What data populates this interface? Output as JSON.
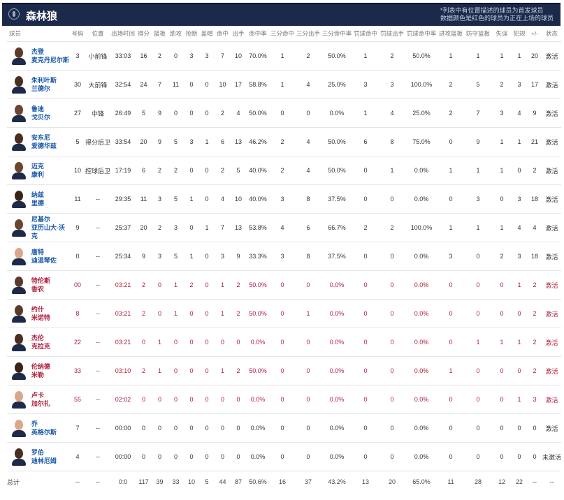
{
  "header": {
    "team": "森林狼",
    "note_line1": "*列表中有位置描述的球员为首发球员",
    "note_line2": "数据颜色是红色的球员为正在上场的球员"
  },
  "columns": [
    "球员",
    "号码",
    "位置",
    "出场时间",
    "得分",
    "篮板",
    "助攻",
    "抢断",
    "盖帽",
    "命中",
    "出手",
    "命中率",
    "三分命中",
    "三分出手",
    "三分命中率",
    "罚球命中",
    "罚球出手",
    "罚球命中率",
    "进攻篮板",
    "防守篮板",
    "失误",
    "犯规",
    "+/-",
    "状态"
  ],
  "colors": {
    "header_bg": "#1b2a4a",
    "name_blue": "#1a5aa8",
    "on_court_red": "#b0203c"
  },
  "players": [
    {
      "first": "杰登",
      "last": "麦克丹尼尔斯",
      "on_court": false,
      "skin": "#5a3a28",
      "stats": [
        "3",
        "小前锋",
        "33:03",
        "16",
        "2",
        "0",
        "3",
        "3",
        "7",
        "10",
        "70.0%",
        "1",
        "2",
        "50.0%",
        "1",
        "2",
        "50.0%",
        "1",
        "1",
        "1",
        "1",
        "20",
        "激活"
      ]
    },
    {
      "first": "朱利叶斯",
      "last": "兰德尔",
      "on_court": false,
      "skin": "#4a2e20",
      "stats": [
        "30",
        "大前锋",
        "32:54",
        "24",
        "7",
        "11",
        "0",
        "0",
        "10",
        "17",
        "58.8%",
        "1",
        "4",
        "25.0%",
        "3",
        "3",
        "100.0%",
        "2",
        "5",
        "2",
        "3",
        "17",
        "激活"
      ]
    },
    {
      "first": "鲁迪",
      "last": "戈贝尔",
      "on_court": false,
      "skin": "#6a4630",
      "stats": [
        "27",
        "中锋",
        "26:49",
        "5",
        "9",
        "0",
        "0",
        "0",
        "2",
        "4",
        "50.0%",
        "0",
        "0",
        "0.0%",
        "1",
        "4",
        "25.0%",
        "2",
        "7",
        "3",
        "4",
        "9",
        "激活"
      ]
    },
    {
      "first": "安东尼",
      "last": "爱德华兹",
      "on_court": false,
      "skin": "#4a2e20",
      "stats": [
        "5",
        "得分后卫",
        "33:54",
        "20",
        "9",
        "5",
        "3",
        "1",
        "6",
        "13",
        "46.2%",
        "2",
        "4",
        "50.0%",
        "6",
        "8",
        "75.0%",
        "0",
        "9",
        "1",
        "1",
        "21",
        "激活"
      ]
    },
    {
      "first": "迈克",
      "last": "康利",
      "on_court": false,
      "skin": "#6a4630",
      "stats": [
        "10",
        "控球后卫",
        "17:19",
        "6",
        "2",
        "2",
        "0",
        "0",
        "2",
        "5",
        "40.0%",
        "2",
        "4",
        "50.0%",
        "0",
        "1",
        "0.0%",
        "1",
        "1",
        "1",
        "0",
        "2",
        "激活"
      ]
    },
    {
      "first": "纳兹",
      "last": "里德",
      "on_court": false,
      "skin": "#3a2418",
      "stats": [
        "11",
        "--",
        "29:35",
        "11",
        "3",
        "5",
        "1",
        "0",
        "4",
        "10",
        "40.0%",
        "3",
        "8",
        "37.5%",
        "0",
        "0",
        "0.0%",
        "0",
        "3",
        "0",
        "3",
        "18",
        "激活"
      ]
    },
    {
      "first": "尼基尔",
      "last": "亚历山大-沃克",
      "on_court": false,
      "skin": "#6a4630",
      "stats": [
        "9",
        "--",
        "25:37",
        "20",
        "2",
        "3",
        "0",
        "1",
        "7",
        "13",
        "53.8%",
        "4",
        "6",
        "66.7%",
        "2",
        "2",
        "100.0%",
        "1",
        "1",
        "1",
        "4",
        "4",
        "激活"
      ]
    },
    {
      "first": "唐特",
      "last": "迪温琴佐",
      "on_court": false,
      "skin": "#d9a88a",
      "stats": [
        "0",
        "--",
        "25:34",
        "9",
        "3",
        "5",
        "1",
        "0",
        "3",
        "9",
        "33.3%",
        "3",
        "8",
        "37.5%",
        "0",
        "0",
        "0.0%",
        "3",
        "0",
        "2",
        "3",
        "18",
        "激活"
      ]
    },
    {
      "first": "特伦斯",
      "last": "香农",
      "on_court": true,
      "skin": "#5a3a28",
      "stats": [
        "00",
        "--",
        "03:21",
        "2",
        "0",
        "1",
        "2",
        "0",
        "1",
        "2",
        "50.0%",
        "0",
        "0",
        "0.0%",
        "0",
        "0",
        "0.0%",
        "0",
        "0",
        "0",
        "1",
        "2",
        "激活"
      ]
    },
    {
      "first": "约什",
      "last": "米诺特",
      "on_court": true,
      "skin": "#5a3a28",
      "stats": [
        "8",
        "--",
        "03:21",
        "2",
        "0",
        "1",
        "0",
        "0",
        "1",
        "2",
        "50.0%",
        "0",
        "1",
        "0.0%",
        "0",
        "0",
        "0.0%",
        "0",
        "0",
        "0",
        "0",
        "2",
        "激活"
      ]
    },
    {
      "first": "杰伦",
      "last": "克拉克",
      "on_court": true,
      "skin": "#4a2e20",
      "stats": [
        "22",
        "--",
        "03:21",
        "0",
        "1",
        "0",
        "0",
        "0",
        "0",
        "0",
        "0.0%",
        "0",
        "0",
        "0.0%",
        "0",
        "0",
        "0.0%",
        "0",
        "1",
        "1",
        "1",
        "2",
        "激活"
      ]
    },
    {
      "first": "伦纳德",
      "last": "米勒",
      "on_court": true,
      "skin": "#3a2418",
      "stats": [
        "33",
        "--",
        "03:10",
        "2",
        "1",
        "0",
        "0",
        "0",
        "1",
        "2",
        "50.0%",
        "0",
        "0",
        "0.0%",
        "0",
        "0",
        "0.0%",
        "1",
        "0",
        "0",
        "0",
        "2",
        "激活"
      ]
    },
    {
      "first": "卢卡",
      "last": "加尔扎",
      "on_court": true,
      "skin": "#d9a88a",
      "stats": [
        "55",
        "--",
        "02:02",
        "0",
        "0",
        "0",
        "0",
        "0",
        "0",
        "0",
        "0.0%",
        "0",
        "0",
        "0.0%",
        "0",
        "0",
        "0.0%",
        "0",
        "0",
        "0",
        "1",
        "3",
        "激活"
      ]
    },
    {
      "first": "乔",
      "last": "英格尔斯",
      "on_court": false,
      "skin": "#d9a88a",
      "stats": [
        "7",
        "--",
        "00:00",
        "0",
        "0",
        "0",
        "0",
        "0",
        "0",
        "0",
        "0.0%",
        "0",
        "0",
        "0.0%",
        "0",
        "0",
        "0.0%",
        "0",
        "0",
        "0",
        "0",
        "0",
        "激活"
      ]
    },
    {
      "first": "罗伯",
      "last": "迪林厄姆",
      "on_court": false,
      "skin": "#4a2e20",
      "stats": [
        "4",
        "--",
        "00:00",
        "0",
        "0",
        "0",
        "0",
        "0",
        "0",
        "0",
        "0.0%",
        "0",
        "0",
        "0.0%",
        "0",
        "0",
        "0.0%",
        "0",
        "0",
        "0",
        "0",
        "0",
        "未激活"
      ]
    }
  ],
  "totals": {
    "label": "总计",
    "stats": [
      "--",
      "--",
      "0:0",
      "117",
      "39",
      "33",
      "10",
      "5",
      "44",
      "87",
      "50.6%",
      "16",
      "37",
      "43.2%",
      "13",
      "20",
      "65.0%",
      "11",
      "28",
      "12",
      "22",
      "--",
      "--"
    ]
  }
}
